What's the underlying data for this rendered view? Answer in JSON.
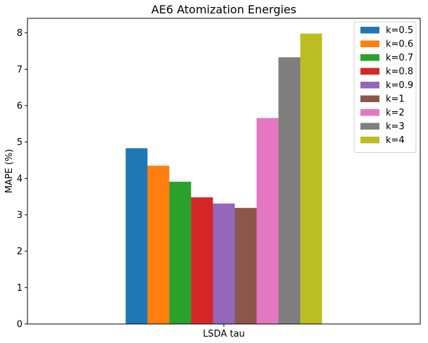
{
  "chart_data": {
    "type": "bar",
    "title": "AE6 Atomization Energies",
    "xlabel": "",
    "ylabel": "MAPE (%)",
    "categories": [
      "LSDA tau"
    ],
    "ylim": [
      0,
      8.4
    ],
    "yticks": [
      0,
      1,
      2,
      3,
      4,
      5,
      6,
      7,
      8
    ],
    "grid": false,
    "legend_position": "top-right",
    "series": [
      {
        "name": "k=0.5",
        "color": "#1f77b4",
        "values": [
          4.83
        ]
      },
      {
        "name": "k=0.6",
        "color": "#ff7f0e",
        "values": [
          4.35
        ]
      },
      {
        "name": "k=0.7",
        "color": "#2ca02c",
        "values": [
          3.91
        ]
      },
      {
        "name": "k=0.8",
        "color": "#d62728",
        "values": [
          3.48
        ]
      },
      {
        "name": "k=0.9",
        "color": "#9467bd",
        "values": [
          3.31
        ]
      },
      {
        "name": "k=1",
        "color": "#8c564b",
        "values": [
          3.19
        ]
      },
      {
        "name": "k=2",
        "color": "#e377c2",
        "values": [
          5.66
        ]
      },
      {
        "name": "k=3",
        "color": "#7f7f7f",
        "values": [
          7.33
        ]
      },
      {
        "name": "k=4",
        "color": "#bcbd22",
        "values": [
          7.98
        ]
      }
    ]
  }
}
